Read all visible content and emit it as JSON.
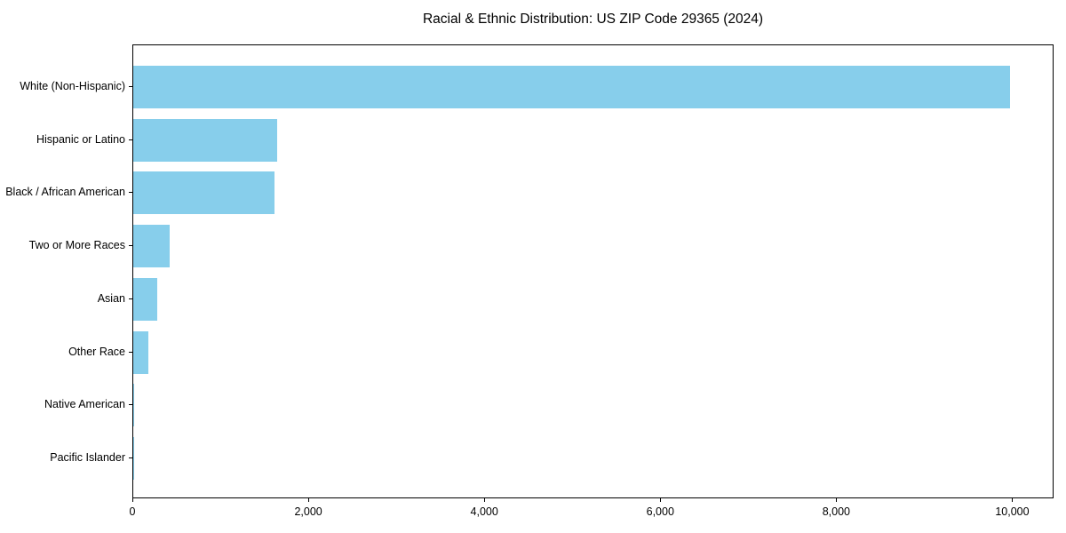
{
  "chart_data": {
    "type": "bar",
    "orientation": "horizontal",
    "title": "Racial & Ethnic Distribution: US ZIP Code 29365 (2024)",
    "xlabel": "",
    "ylabel": "",
    "categories": [
      "White (Non-Hispanic)",
      "Hispanic or Latino",
      "Black / African American",
      "Two or More Races",
      "Asian",
      "Other Race",
      "Native American",
      "Pacific Islander"
    ],
    "values": [
      9970,
      1640,
      1610,
      415,
      275,
      170,
      15,
      5
    ],
    "xlim": [
      0,
      10470
    ],
    "x_ticks": [
      0,
      2000,
      4000,
      6000,
      8000,
      10000
    ],
    "bar_color": "#87CEEB",
    "text_color": "#000000",
    "grid": false,
    "legend": "none"
  }
}
